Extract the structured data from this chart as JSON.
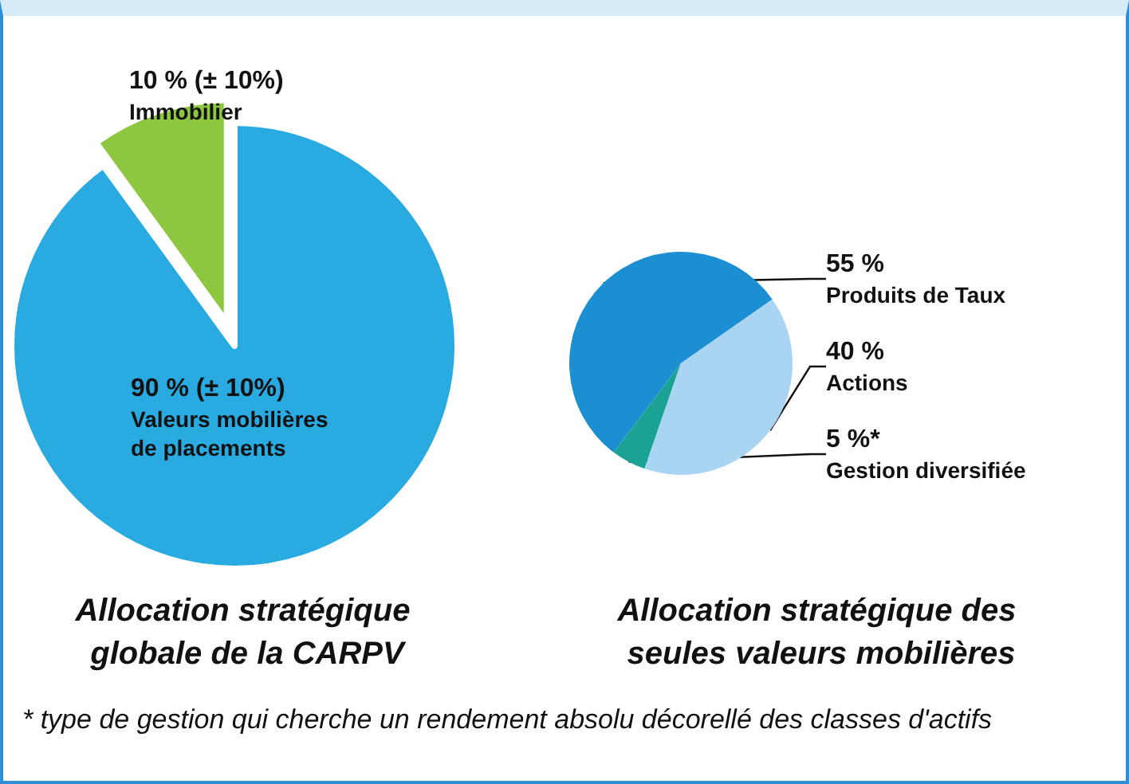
{
  "chart_data": [
    {
      "type": "pie",
      "title": "Allocation stratégique globale de la CARPV",
      "categories": [
        "Immobilier",
        "Valeurs mobilières de placements"
      ],
      "values": [
        10,
        90
      ],
      "value_labels": [
        "10 % (± 10%)",
        "90 % (± 10%)"
      ],
      "colors": [
        "#8dc63f",
        "#29abe2"
      ],
      "legend": false
    },
    {
      "type": "pie",
      "title": "Allocation stratégique des seules valeurs mobilières",
      "categories": [
        "Produits de Taux",
        "Gestion diversifiée",
        "Actions"
      ],
      "values": [
        55,
        5,
        40
      ],
      "value_labels": [
        "55 %",
        "5 %*",
        "40 %"
      ],
      "colors": [
        "#1b8fd2",
        "#1aa394",
        "#a9d5f2"
      ],
      "legend": false,
      "annotations": [
        "* type de gestion qui cherche un rendement absolu décorellé des classes d'actifs"
      ]
    }
  ]
}
